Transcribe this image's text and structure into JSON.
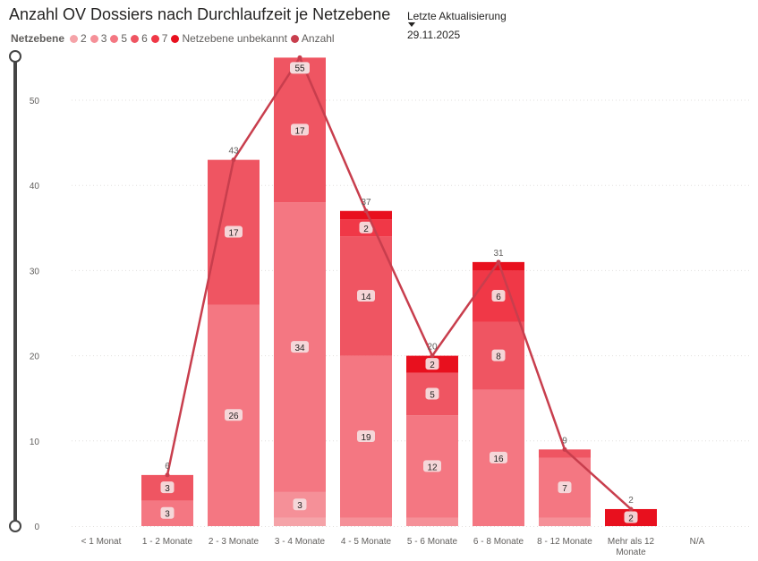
{
  "title": "Anzahl OV Dossiers nach Durchlaufzeit je Netzebene",
  "legend": {
    "title": "Netzebene",
    "items": [
      {
        "label": "2",
        "color": "#f5a3a8"
      },
      {
        "label": "3",
        "color": "#f59098"
      },
      {
        "label": "5",
        "color": "#f47782"
      },
      {
        "label": "6",
        "color": "#ef5562"
      },
      {
        "label": "7",
        "color": "#f03847"
      },
      {
        "label": "Netzebene unbekannt",
        "color": "#e8101e"
      },
      {
        "label": "Anzahl",
        "color": "#c83e4d"
      }
    ]
  },
  "update": {
    "label": "Letzte Aktualisierung",
    "date": "29.11.2025"
  },
  "chart_data": {
    "type": "bar",
    "stacked": true,
    "categories": [
      "< 1 Monat",
      "1 - 2 Monate",
      "2 - 3 Monate",
      "3 - 4 Monate",
      "4 - 5 Monate",
      "5 - 6 Monate",
      "6 - 8 Monate",
      "8 - 12 Monate",
      "Mehr als 12 Monate",
      "N/A"
    ],
    "category_lines": [
      [
        "< 1 Monat"
      ],
      [
        "1 - 2 Monate"
      ],
      [
        "2 - 3 Monate"
      ],
      [
        "3 - 4 Monate"
      ],
      [
        "4 - 5 Monate"
      ],
      [
        "5 - 6 Monate"
      ],
      [
        "6 - 8 Monate"
      ],
      [
        "8 - 12 Monate"
      ],
      [
        "Mehr als 12",
        "Monate"
      ],
      [
        "N/A"
      ]
    ],
    "series": [
      {
        "name": "2",
        "color": "#f5a3a8",
        "values": [
          0,
          0,
          0,
          1,
          0,
          0,
          0,
          0,
          0,
          0
        ]
      },
      {
        "name": "3",
        "color": "#f59098",
        "values": [
          0,
          0,
          0,
          3,
          1,
          1,
          0,
          1,
          0,
          0
        ]
      },
      {
        "name": "5",
        "color": "#f47782",
        "values": [
          0,
          3,
          26,
          34,
          19,
          12,
          16,
          7,
          0,
          0
        ]
      },
      {
        "name": "6",
        "color": "#ef5562",
        "values": [
          0,
          3,
          17,
          17,
          14,
          5,
          8,
          1,
          0,
          0
        ]
      },
      {
        "name": "7",
        "color": "#f03847",
        "values": [
          0,
          0,
          0,
          0,
          2,
          0,
          6,
          0,
          0,
          0
        ]
      },
      {
        "name": "Netzebene unbekannt",
        "color": "#e8101e",
        "values": [
          0,
          0,
          0,
          0,
          1,
          2,
          1,
          0,
          2,
          0
        ]
      }
    ],
    "segment_labels": [
      {
        "category": 1,
        "series": 2,
        "text": "3"
      },
      {
        "category": 1,
        "series": 3,
        "text": "3"
      },
      {
        "category": 2,
        "series": 2,
        "text": "26"
      },
      {
        "category": 2,
        "series": 3,
        "text": "17"
      },
      {
        "category": 3,
        "series": 1,
        "text": "3"
      },
      {
        "category": 3,
        "series": 2,
        "text": "34"
      },
      {
        "category": 3,
        "series": 3,
        "text": "17"
      },
      {
        "category": 4,
        "series": 2,
        "text": "19"
      },
      {
        "category": 4,
        "series": 3,
        "text": "14"
      },
      {
        "category": 4,
        "series": 4,
        "text": "2"
      },
      {
        "category": 5,
        "series": 2,
        "text": "12"
      },
      {
        "category": 5,
        "series": 3,
        "text": "5"
      },
      {
        "category": 5,
        "series": 5,
        "text": "2"
      },
      {
        "category": 6,
        "series": 2,
        "text": "16"
      },
      {
        "category": 6,
        "series": 3,
        "text": "8"
      },
      {
        "category": 6,
        "series": 4,
        "text": "6"
      },
      {
        "category": 7,
        "series": 2,
        "text": "7"
      },
      {
        "category": 8,
        "series": 5,
        "text": "2"
      }
    ],
    "line": {
      "name": "Anzahl",
      "color": "#c83e4d",
      "values": [
        null,
        6,
        43,
        55,
        37,
        20,
        31,
        9,
        2,
        null
      ],
      "labels": [
        "",
        "6",
        "43",
        "55",
        "37",
        "20",
        "31",
        "9",
        "2",
        ""
      ]
    },
    "y_ticks": [
      "0",
      "10",
      "20",
      "30",
      "40",
      "50"
    ],
    "ylim": [
      0,
      55
    ],
    "grid": true,
    "legend_position": "top-left"
  }
}
